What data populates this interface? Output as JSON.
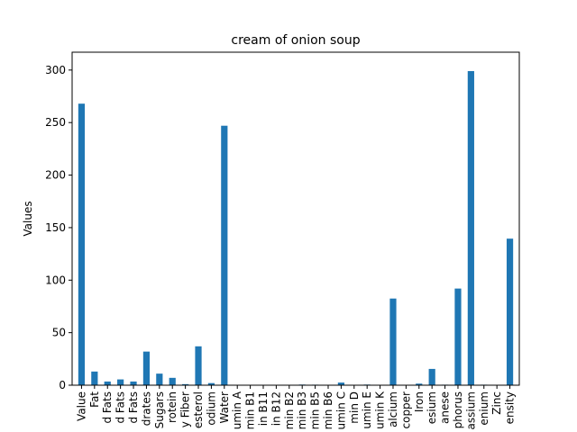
{
  "chart_data": {
    "type": "bar",
    "title": "cream of onion soup",
    "xlabel": "",
    "ylabel": "Values",
    "ylim": [
      0,
      317
    ],
    "yticks": [
      0,
      50,
      100,
      150,
      200,
      250,
      300
    ],
    "grid": false,
    "legend": "none",
    "bar_color": "#1f77b4",
    "categories": [
      "Value",
      "Fat",
      "d Fats",
      "d Fats",
      "d Fats",
      "drates",
      "Sugars",
      "rotein",
      "y Fiber",
      "esterol",
      "odium",
      "Water",
      "umin A",
      "min B1",
      "in B11",
      "in B12",
      "min B2",
      "min B3",
      "min B5",
      "min B6",
      "umin C",
      "min D",
      "umin E",
      "umin K",
      "alcium",
      "copper",
      "Iron",
      "esium",
      "anese",
      "phorus",
      "assium",
      "enium",
      "Zinc",
      "ensity"
    ],
    "values": [
      268,
      13,
      3.5,
      5.5,
      3.5,
      32,
      11,
      7,
      1,
      37,
      2,
      247,
      0.2,
      0.1,
      0.1,
      0.1,
      0.2,
      0.6,
      0.5,
      0.2,
      2.5,
      0.1,
      0.6,
      0.2,
      82.5,
      0.1,
      1.5,
      15.5,
      0.5,
      92,
      299,
      0.5,
      0.4,
      139.5
    ]
  }
}
